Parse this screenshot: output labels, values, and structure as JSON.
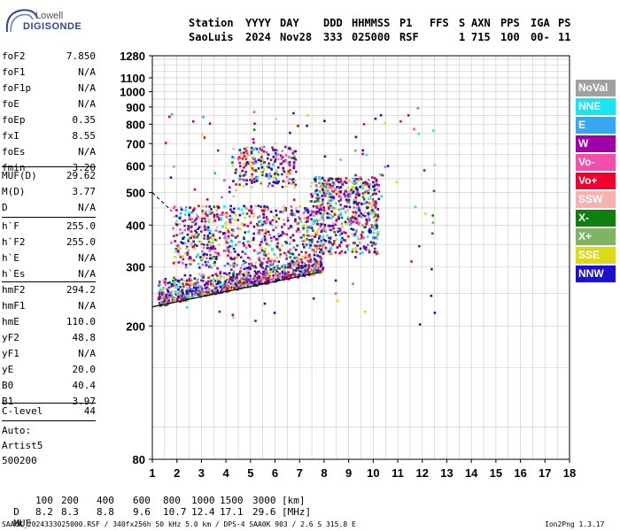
{
  "logo": {
    "line1": "Lowell",
    "line2": "DIGISONDE"
  },
  "header": {
    "labels": [
      "Station",
      "YYYY",
      "DAY",
      "DDD",
      "HHMMSS",
      "P1",
      "FFS",
      "S",
      "AXN",
      "PPS",
      "IGA",
      "PS"
    ],
    "values": [
      "SaoLuis",
      "2024",
      "Nov28",
      "333",
      "025000",
      "RSF",
      "1",
      "715",
      "100",
      "00-",
      "11"
    ]
  },
  "params_group1": [
    {
      "label": "foF2",
      "value": "7.850"
    },
    {
      "label": "foF1",
      "value": "N/A"
    },
    {
      "label": "foF1p",
      "value": "N/A"
    },
    {
      "label": "foE",
      "value": "N/A"
    },
    {
      "label": "foEp",
      "value": "0.35"
    },
    {
      "label": "fxI",
      "value": "8.55"
    },
    {
      "label": "foEs",
      "value": "N/A"
    },
    {
      "label": "fmin",
      "value": "3.20"
    }
  ],
  "params_group2": [
    {
      "label": "MUF(D)",
      "value": "29.62"
    },
    {
      "label": "M(D)",
      "value": "3.77"
    },
    {
      "label": "D",
      "value": "N/A"
    }
  ],
  "params_group3": [
    {
      "label": "h`F",
      "value": "255.0"
    },
    {
      "label": "h`F2",
      "value": "255.0"
    },
    {
      "label": "h`E",
      "value": "N/A"
    },
    {
      "label": "h`Es",
      "value": "N/A"
    }
  ],
  "params_group4": [
    {
      "label": "hmF2",
      "value": "294.2"
    },
    {
      "label": "hmF1",
      "value": "N/A"
    },
    {
      "label": "hmE",
      "value": "110.0"
    },
    {
      "label": "yF2",
      "value": "48.8"
    },
    {
      "label": "yF1",
      "value": "N/A"
    },
    {
      "label": "yE",
      "value": "20.0"
    },
    {
      "label": "B0",
      "value": "40.4"
    },
    {
      "label": "B1",
      "value": "3.97"
    }
  ],
  "clevel": {
    "label": "C-level",
    "value": "44"
  },
  "autoscaling": {
    "line1": "Auto:",
    "line2": "Artist5",
    "line3": "500200"
  },
  "legend": [
    {
      "label": "NoVal",
      "color": "#a0a0a0"
    },
    {
      "label": "NNE",
      "color": "#19e4f0"
    },
    {
      "label": "E",
      "color": "#3aa6f2"
    },
    {
      "label": "W",
      "color": "#a000a8"
    },
    {
      "label": "Vo-",
      "color": "#f24eaa"
    },
    {
      "label": "Vo+",
      "color": "#f0002c"
    },
    {
      "label": "SSW",
      "color": "#f4b2b0"
    },
    {
      "label": "X-",
      "color": "#0f7f10"
    },
    {
      "label": "X+",
      "color": "#7fb462"
    },
    {
      "label": "SSE",
      "color": "#dcd81a"
    },
    {
      "label": "NNW",
      "color": "#1c10cc"
    }
  ],
  "chart_data": {
    "type": "scatter",
    "title": "",
    "xlabel": "",
    "ylabel": "",
    "xlim": [
      1,
      18
    ],
    "ylim": [
      80,
      1280
    ],
    "yscale": "log",
    "x_ticks": [
      1,
      2,
      3,
      4,
      5,
      6,
      7,
      8,
      9,
      10,
      11,
      12,
      13,
      14,
      15,
      16,
      17,
      18
    ],
    "y_ticks": [
      80,
      200,
      300,
      400,
      500,
      600,
      700,
      800,
      900,
      1000,
      1100,
      1280
    ],
    "grid": true,
    "legend_position": "right",
    "trace_line": {
      "x": [
        1.0,
        7.9
      ],
      "y": [
        228,
        290
      ],
      "color": "#000000"
    },
    "echo_clusters": [
      {
        "name": "F-trace",
        "x": [
          1.2,
          7.9
        ],
        "y": [
          225,
          300
        ]
      },
      {
        "name": "F-spread",
        "x": [
          1.8,
          8.0
        ],
        "y": [
          300,
          460
        ]
      },
      {
        "name": "F-high",
        "x": [
          7.4,
          10.2
        ],
        "y": [
          330,
          560
        ]
      },
      {
        "name": "2F",
        "x": [
          4.2,
          6.8
        ],
        "y": [
          520,
          690
        ]
      }
    ]
  },
  "dist_table": {
    "D_label": "D",
    "D_values": [
      "100",
      "200",
      "400",
      "600",
      "800",
      "1000",
      "1500",
      "3000"
    ],
    "D_unit": "[km]",
    "MUF_label": "MUF",
    "MUF_values": [
      "8.2",
      "8.3",
      "8.8",
      "9.6",
      "10.7",
      "12.4",
      "17.1",
      "29.6"
    ],
    "MUF_unit": "[MHz]"
  },
  "footer": {
    "left": "SAA0K_2024333025000.RSF / 340fx256h 50 kHz 5.0 km / DPS-4 SAA0K 903 / 2.6 S 315.8 E",
    "right": "Ion2Png 1.3.17"
  }
}
